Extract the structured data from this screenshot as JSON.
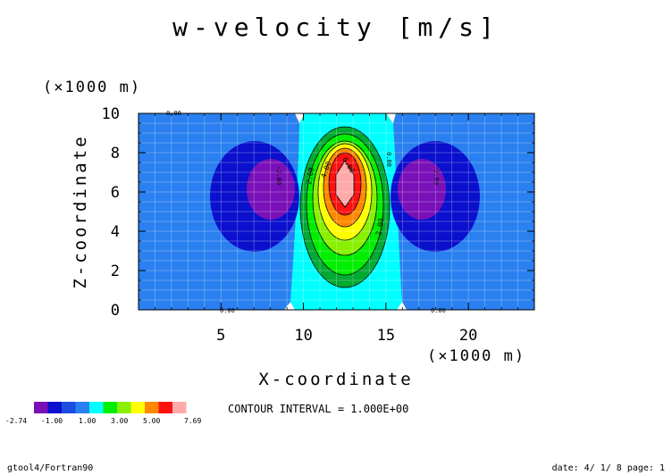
{
  "chart_data": {
    "type": "contour",
    "title": "w-velocity [m/s]",
    "xlabel": "X-coordinate",
    "ylabel": "Z-coordinate",
    "x_unit": "(×1000 m)",
    "y_unit": "(×1000 m)",
    "xlim": [
      0,
      24
    ],
    "ylim": [
      0,
      10
    ],
    "x_ticks": [
      5,
      10,
      15,
      20
    ],
    "y_ticks": [
      0,
      2,
      4,
      6,
      8,
      10
    ],
    "grid": true,
    "contour_interval_text": "CONTOUR INTERVAL = 1.000E+00",
    "contour_labels": [
      "0.00",
      "2.00",
      "4.00",
      "6.00",
      "-2.00",
      "2.00",
      "0.00",
      "0.00",
      "0.00",
      "-2.00"
    ],
    "colorbar": {
      "labels": [
        "-2.74",
        "-1.00",
        "1.00",
        "3.00",
        "5.00",
        "7.69"
      ],
      "levels": [
        -2.74,
        -2,
        -1,
        0,
        1,
        2,
        3,
        4,
        5,
        6,
        7,
        7.69
      ],
      "colors": [
        "#7a10b8",
        "#0a10cc",
        "#1a4de0",
        "#2a80f0",
        "#00ffff",
        "#00ee00",
        "#88f000",
        "#ffff00",
        "#ff8800",
        "#ff1010",
        "#ffaaaa"
      ]
    },
    "fields": {
      "background": 0,
      "updraft_peak": 7.69,
      "updraft_center": [
        12.5,
        6.5
      ],
      "downdraft_min": -2.74,
      "downdraft_centers": [
        [
          7.5,
          6.3
        ],
        [
          17.5,
          6.3
        ]
      ]
    }
  },
  "footer": {
    "left": "gtool4/Fortran90",
    "right": "date: 4/ 1/ 8 page: 1"
  }
}
